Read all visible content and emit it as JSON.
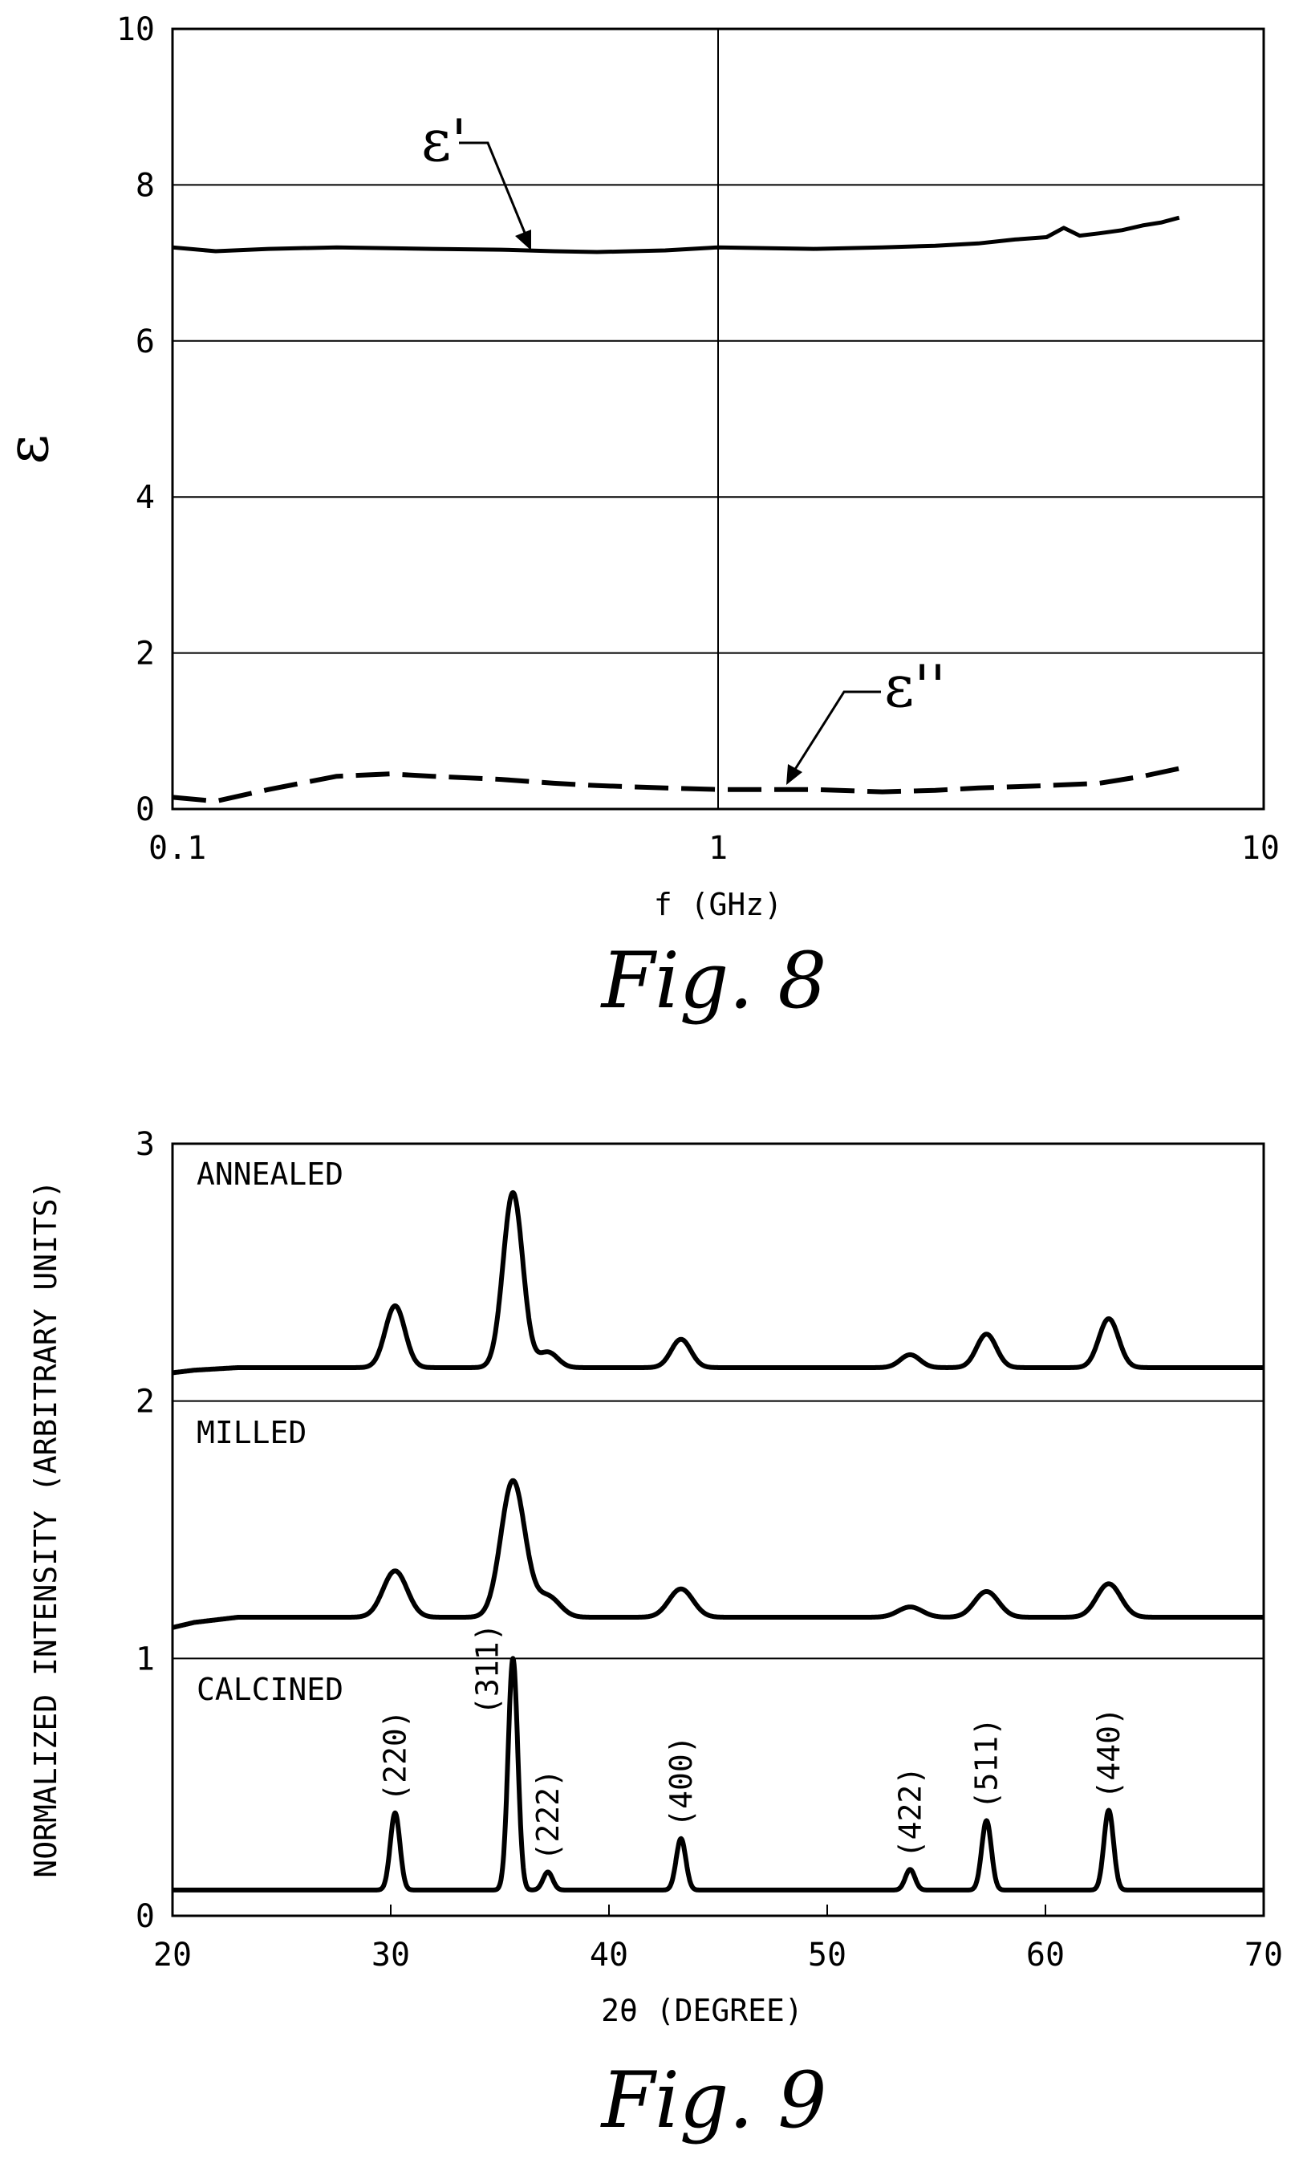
{
  "chart_data": [
    {
      "type": "line",
      "figure_label": "Fig. 8",
      "xlabel": "f (GHz)",
      "ylabel": "ε",
      "xscale": "log",
      "xlim": [
        0.1,
        10
      ],
      "ylim": [
        0,
        10
      ],
      "xticks": [
        "0.1",
        "1",
        "10"
      ],
      "yticks": [
        "0",
        "2",
        "4",
        "6",
        "8",
        "10"
      ],
      "grid": true,
      "series": [
        {
          "name": "ε'",
          "style": "solid",
          "x": [
            0.1,
            0.12,
            0.15,
            0.2,
            0.3,
            0.4,
            0.5,
            0.6,
            0.8,
            1.0,
            1.5,
            2.0,
            2.5,
            3.0,
            3.5,
            4.0,
            4.3,
            4.6,
            5.0,
            5.5,
            6.0,
            6.5,
            7.0
          ],
          "y": [
            7.2,
            7.15,
            7.18,
            7.2,
            7.18,
            7.17,
            7.15,
            7.14,
            7.16,
            7.2,
            7.18,
            7.2,
            7.22,
            7.25,
            7.3,
            7.33,
            7.45,
            7.35,
            7.38,
            7.42,
            7.48,
            7.52,
            7.58
          ]
        },
        {
          "name": "ε''",
          "style": "dashed",
          "x": [
            0.1,
            0.12,
            0.15,
            0.2,
            0.25,
            0.3,
            0.4,
            0.5,
            0.6,
            0.8,
            1.0,
            1.5,
            2.0,
            2.5,
            3.0,
            4.0,
            5.0,
            6.0,
            7.0
          ],
          "y": [
            0.15,
            0.1,
            0.25,
            0.42,
            0.45,
            0.42,
            0.38,
            0.33,
            0.3,
            0.27,
            0.25,
            0.25,
            0.22,
            0.24,
            0.27,
            0.3,
            0.33,
            0.42,
            0.52
          ]
        }
      ]
    },
    {
      "type": "line",
      "figure_label": "Fig. 9",
      "xlabel": "2θ (DEGREE)",
      "ylabel": "NORMALIZED INTENSITY (ARBITRARY UNITS)",
      "xlim": [
        20,
        70
      ],
      "ylim": [
        0,
        3
      ],
      "xticks": [
        "20",
        "30",
        "40",
        "50",
        "60",
        "70"
      ],
      "yticks": [
        "0",
        "1",
        "2",
        "3"
      ],
      "hlines": [
        1,
        2
      ],
      "peaks": [
        {
          "label": "(220)",
          "pos": 30.2
        },
        {
          "label": "(311)",
          "pos": 35.6
        },
        {
          "label": "(222)",
          "pos": 37.2
        },
        {
          "label": "(400)",
          "pos": 43.3
        },
        {
          "label": "(422)",
          "pos": 53.8
        },
        {
          "label": "(511)",
          "pos": 57.3
        },
        {
          "label": "(440)",
          "pos": 62.9
        }
      ],
      "series": [
        {
          "name": "CALCINED",
          "baseline": 0.1,
          "width": 0.22,
          "heights": [
            0.3,
            0.9,
            0.07,
            0.2,
            0.08,
            0.27,
            0.31
          ]
        },
        {
          "name": "MILLED",
          "baseline_points": [
            [
              20,
              1.12
            ],
            [
              21,
              1.14
            ],
            [
              23,
              1.16
            ],
            [
              70,
              1.16
            ]
          ],
          "width": 0.55,
          "heights": [
            0.18,
            0.53,
            0.08,
            0.11,
            0.04,
            0.1,
            0.13
          ]
        },
        {
          "name": "ANNEALED",
          "baseline_points": [
            [
              20,
              2.11
            ],
            [
              21,
              2.12
            ],
            [
              23,
              2.13
            ],
            [
              70,
              2.13
            ]
          ],
          "width": 0.45,
          "heights": [
            0.24,
            0.68,
            0.06,
            0.11,
            0.05,
            0.13,
            0.19
          ]
        }
      ]
    }
  ]
}
